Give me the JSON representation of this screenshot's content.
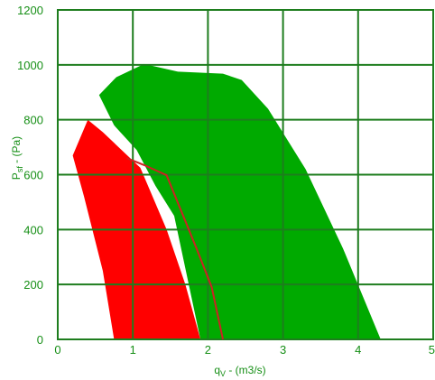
{
  "chart_data": {
    "type": "area",
    "title": "",
    "xlabel": {
      "main": "q",
      "sub": "V",
      "rest": " - (m3/s)"
    },
    "ylabel": {
      "main": "P",
      "sub": "sf",
      "rest": " - (Pa)"
    },
    "xlim": [
      0,
      5
    ],
    "ylim": [
      0,
      1200
    ],
    "x_ticks": [
      0,
      1,
      2,
      3,
      4,
      5
    ],
    "y_ticks": [
      0,
      200,
      400,
      600,
      800,
      1000,
      1200
    ],
    "grid": true,
    "colors": {
      "green": "#00aa00",
      "red": "#ff0000",
      "grid": "#1e7d1e",
      "text": "#168f16"
    },
    "series": [
      {
        "color": "#00aa00",
        "polygon": [
          [
            0.55,
            890
          ],
          [
            0.78,
            955
          ],
          [
            1.15,
            1003
          ],
          [
            1.6,
            975
          ],
          [
            2.2,
            968
          ],
          [
            2.45,
            945
          ],
          [
            2.8,
            840
          ],
          [
            3.3,
            620
          ],
          [
            3.8,
            330
          ],
          [
            4.3,
            0
          ],
          [
            1.9,
            0
          ],
          [
            1.55,
            450
          ],
          [
            1.3,
            560
          ],
          [
            1.05,
            690
          ],
          [
            0.75,
            780
          ]
        ]
      },
      {
        "color": "#ff0000",
        "polygon": [
          [
            0.2,
            670
          ],
          [
            0.4,
            800
          ],
          [
            0.6,
            755
          ],
          [
            1.1,
            625
          ],
          [
            1.45,
            400
          ],
          [
            1.7,
            200
          ],
          [
            1.9,
            0
          ],
          [
            0.75,
            0
          ],
          [
            0.6,
            250
          ],
          [
            0.35,
            520
          ]
        ]
      }
    ],
    "lines": [
      {
        "color": "#cc2222",
        "points": [
          [
            0.92,
            660
          ],
          [
            1.15,
            635
          ],
          [
            1.45,
            598
          ],
          [
            1.85,
            330
          ],
          [
            2.05,
            190
          ],
          [
            2.2,
            0
          ]
        ]
      }
    ]
  }
}
